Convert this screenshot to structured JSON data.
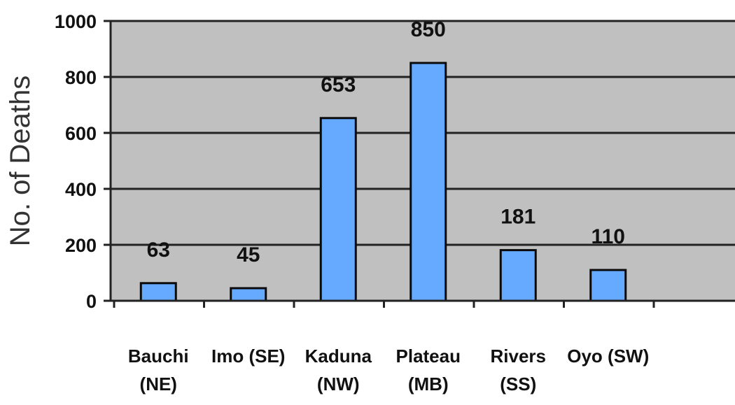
{
  "chart_data": {
    "type": "bar",
    "title": "",
    "xlabel": "",
    "ylabel": "No. of Deaths",
    "ylim": [
      0,
      1000
    ],
    "yticks": [
      0,
      200,
      400,
      600,
      800,
      1000
    ],
    "grid": true,
    "plot_background": "#c0c0c0",
    "bar_color": "#66aaff",
    "bar_edge_color": "#0a0a0a",
    "categories": [
      [
        "Bauchi",
        "(NE)"
      ],
      [
        "Imo (SE)"
      ],
      [
        "Kaduna",
        "(NW)"
      ],
      [
        "Plateau",
        "(MB)"
      ],
      [
        "Rivers",
        "(SS)"
      ],
      [
        "Oyo (SW)"
      ]
    ],
    "values": [
      63,
      45,
      653,
      850,
      181,
      110
    ],
    "data_labels": [
      "63",
      "45",
      "653",
      "850",
      "181",
      "110"
    ]
  }
}
